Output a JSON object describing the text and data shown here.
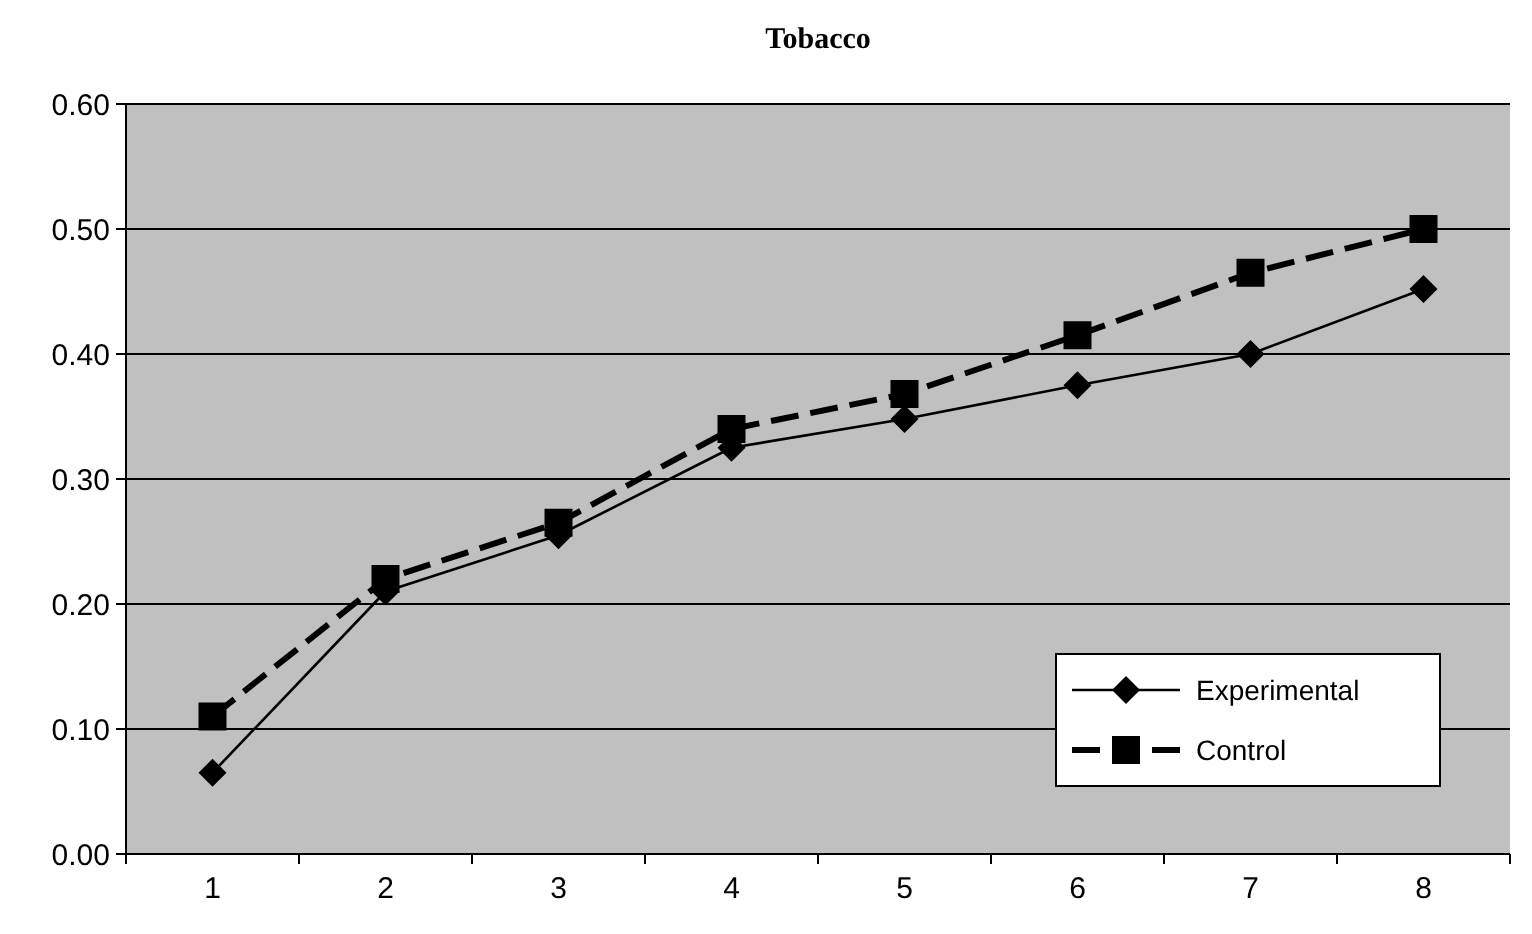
{
  "chart_data": {
    "type": "line",
    "title": "Tobacco",
    "categories": [
      "1",
      "2",
      "3",
      "4",
      "5",
      "6",
      "7",
      "8"
    ],
    "series": [
      {
        "name": "Experimental",
        "color": "#000000",
        "values": [
          0.065,
          0.21,
          0.255,
          0.325,
          0.348,
          0.375,
          0.4,
          0.452
        ],
        "marker": "diamond",
        "line_style": "solid"
      },
      {
        "name": "Control",
        "color": "#000000",
        "values": [
          0.11,
          0.22,
          0.265,
          0.34,
          0.368,
          0.415,
          0.465,
          0.5
        ],
        "marker": "square",
        "line_style": "dashed"
      }
    ],
    "ylim": [
      0,
      0.6
    ],
    "yticks": [
      {
        "value": 0,
        "label": "0.00"
      },
      {
        "value": 0.1,
        "label": "0.10"
      },
      {
        "value": 0.2,
        "label": "0.20"
      },
      {
        "value": 0.3,
        "label": "0.30"
      },
      {
        "value": 0.4,
        "label": "0.40"
      },
      {
        "value": 0.5,
        "label": "0.50"
      },
      {
        "value": 0.6,
        "label": "0.60"
      }
    ],
    "grid": "y",
    "legend": "bottom right"
  }
}
